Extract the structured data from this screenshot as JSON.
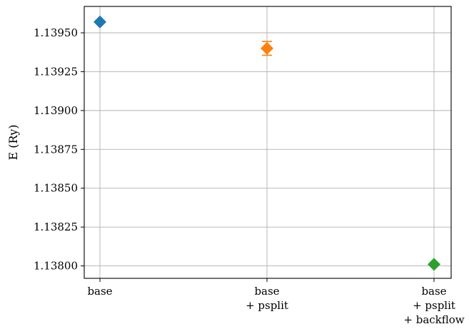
{
  "chart_data": {
    "type": "scatter",
    "title": "",
    "xlabel": "",
    "ylabel": "E (Ry)",
    "grid": true,
    "ylim": [
      1.13792,
      1.13967
    ],
    "yticks": [
      1.138,
      1.13825,
      1.1385,
      1.13875,
      1.139,
      1.13925,
      1.1395
    ],
    "ytick_labels": [
      "1.13800",
      "1.13825",
      "1.13850",
      "1.13875",
      "1.13900",
      "1.13925",
      "1.13950"
    ],
    "categories": [
      [
        "base"
      ],
      [
        "base",
        "+ psplit"
      ],
      [
        "base",
        "+ psplit",
        "+ backflow"
      ]
    ],
    "points": [
      {
        "category_index": 0,
        "y": 1.13957,
        "error": 0.0,
        "color": "#1f77b4",
        "marker": "diamond"
      },
      {
        "category_index": 1,
        "y": 1.1394,
        "error": 4.45e-05,
        "color": "#ff7f0e",
        "marker": "diamond"
      },
      {
        "category_index": 2,
        "y": 1.13801,
        "error": 0.0,
        "color": "#2ca02c",
        "marker": "diamond"
      }
    ]
  }
}
